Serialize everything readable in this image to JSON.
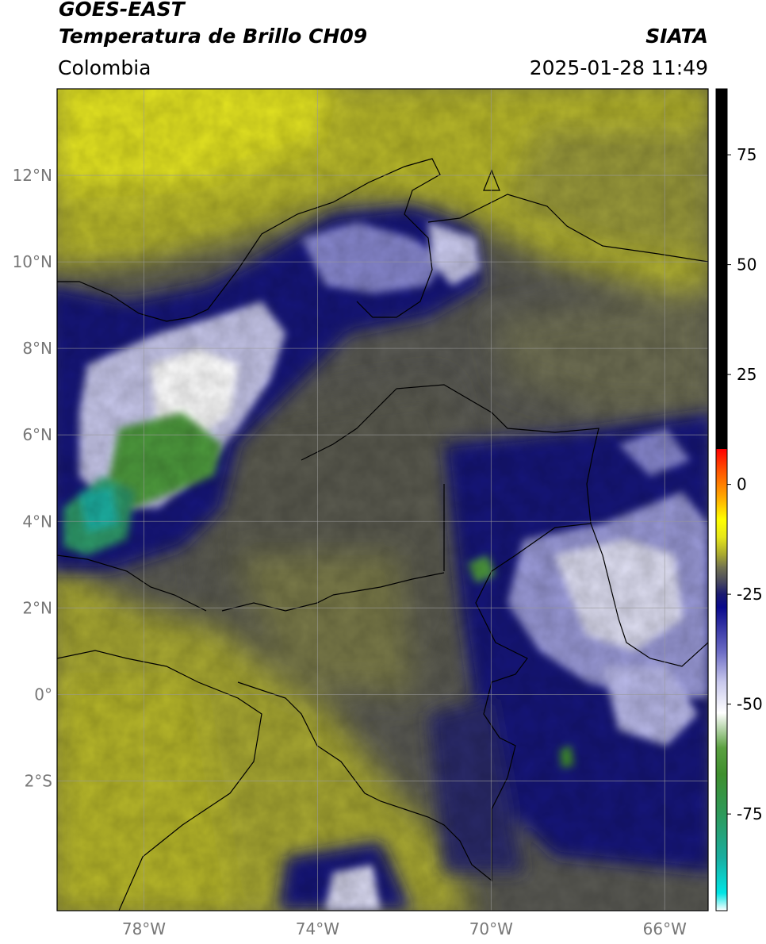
{
  "header": {
    "satellite": "GOES-EAST",
    "product": "Temperatura de Brillo CH09",
    "source": "SIATA",
    "region": "Colombia",
    "datetime": "2025-01-28 11:49"
  },
  "map": {
    "lon_range": [
      -80,
      -65
    ],
    "lat_range": [
      -5,
      14
    ],
    "lat_ticks": [
      {
        "value": 12,
        "label": "12°N"
      },
      {
        "value": 10,
        "label": "10°N"
      },
      {
        "value": 8,
        "label": "8°N"
      },
      {
        "value": 6,
        "label": "6°N"
      },
      {
        "value": 4,
        "label": "4°N"
      },
      {
        "value": 2,
        "label": "2°N"
      },
      {
        "value": 0,
        "label": "0°"
      },
      {
        "value": -2,
        "label": "2°S"
      }
    ],
    "lon_ticks": [
      {
        "value": -78,
        "label": "78°W"
      },
      {
        "value": -74,
        "label": "74°W"
      },
      {
        "value": -70,
        "label": "70°W"
      },
      {
        "value": -66,
        "label": "66°W"
      }
    ]
  },
  "colorbar": {
    "range": [
      -97,
      90
    ],
    "tick_labels": [
      {
        "value": 75,
        "label": "75"
      },
      {
        "value": 50,
        "label": "50"
      },
      {
        "value": 25,
        "label": "25"
      },
      {
        "value": 0,
        "label": "0"
      },
      {
        "value": -25,
        "label": "-25"
      },
      {
        "value": -50,
        "label": "-50"
      },
      {
        "value": -75,
        "label": "-75"
      }
    ],
    "color_stops": [
      {
        "value": -97,
        "color": "#ffffff"
      },
      {
        "value": -93,
        "color": "#00e5e5"
      },
      {
        "value": -85,
        "color": "#1aaea0"
      },
      {
        "value": -75,
        "color": "#2e9a5a"
      },
      {
        "value": -66,
        "color": "#3f8f2e"
      },
      {
        "value": -60,
        "color": "#5aa040"
      },
      {
        "value": -52,
        "color": "#ffffff"
      },
      {
        "value": -45,
        "color": "#c8c8ec"
      },
      {
        "value": -38,
        "color": "#6b6bc4"
      },
      {
        "value": -28,
        "color": "#0a0a8c"
      },
      {
        "value": -25,
        "color": "#1a1a70"
      },
      {
        "value": -22,
        "color": "#4a4a5e"
      },
      {
        "value": -19,
        "color": "#707050"
      },
      {
        "value": -16,
        "color": "#a8a830"
      },
      {
        "value": -12,
        "color": "#e6e61a"
      },
      {
        "value": -8,
        "color": "#ffff00"
      },
      {
        "value": -3,
        "color": "#ffaa00"
      },
      {
        "value": 3,
        "color": "#ff5500"
      },
      {
        "value": 8,
        "color": "#ff0000"
      },
      {
        "value": 8.1,
        "color": "#000000"
      },
      {
        "value": 90,
        "color": "#000000"
      }
    ]
  }
}
